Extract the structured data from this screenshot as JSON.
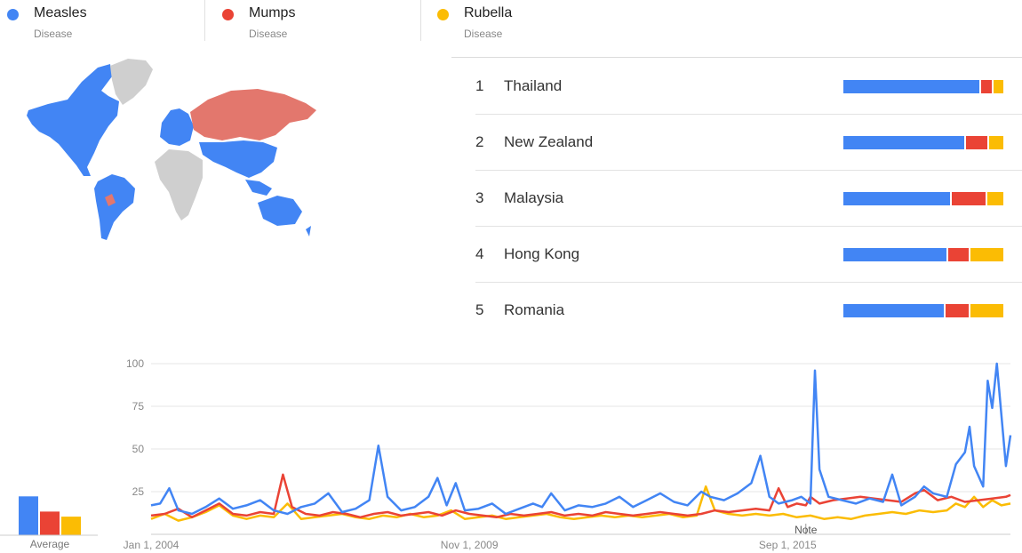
{
  "colors": {
    "measles": "#4285f4",
    "mumps": "#ea4335",
    "rubella": "#fbbc04",
    "grid": "#e6e6e6",
    "axis": "#cccccc",
    "map_none": "#cfcfcf"
  },
  "legend": [
    {
      "name": "Measles",
      "sub": "Disease",
      "color": "#4285f4"
    },
    {
      "name": "Mumps",
      "sub": "Disease",
      "color": "#ea4335"
    },
    {
      "name": "Rubella",
      "sub": "Disease",
      "color": "#fbbc04"
    }
  ],
  "map": {
    "regions": [
      {
        "name": "North America",
        "dominant": "Measles"
      },
      {
        "name": "Greenland",
        "dominant": "none"
      },
      {
        "name": "South America",
        "dominant": "Measles"
      },
      {
        "name": "Europe",
        "dominant": "Measles"
      },
      {
        "name": "Russia",
        "dominant": "Mumps"
      },
      {
        "name": "Africa",
        "dominant": "none"
      },
      {
        "name": "Asia",
        "dominant": "Measles"
      },
      {
        "name": "Australia",
        "dominant": "Measles"
      }
    ]
  },
  "ranking": [
    {
      "rank": "1",
      "region": "Thailand",
      "share": {
        "measles": 0.87,
        "mumps": 0.07,
        "rubella": 0.06
      }
    },
    {
      "rank": "2",
      "region": "New Zealand",
      "share": {
        "measles": 0.77,
        "mumps": 0.14,
        "rubella": 0.09
      }
    },
    {
      "rank": "3",
      "region": "Malaysia",
      "share": {
        "measles": 0.68,
        "mumps": 0.22,
        "rubella": 0.1
      }
    },
    {
      "rank": "4",
      "region": "Hong Kong",
      "share": {
        "measles": 0.66,
        "mumps": 0.13,
        "rubella": 0.21
      }
    },
    {
      "rank": "5",
      "region": "Romania",
      "share": {
        "measles": 0.64,
        "mumps": 0.15,
        "rubella": 0.21
      }
    }
  ],
  "average": {
    "label": "Average",
    "values": {
      "measles": 23,
      "mumps": 14,
      "rubella": 11
    }
  },
  "note_label": "Note",
  "chart_data": {
    "type": "line",
    "x_start": "2004-01",
    "x_end": "2019-10",
    "ylim": [
      0,
      100
    ],
    "y_ticks": [
      "100",
      "75",
      "50",
      "25"
    ],
    "x_ticks": [
      {
        "date": "2004-01",
        "label": "Jan 1, 2004"
      },
      {
        "date": "2009-11",
        "label": "Nov 1, 2009"
      },
      {
        "date": "2015-09",
        "label": "Sep 1, 2015"
      }
    ],
    "note_date": "2016-01",
    "grid": true,
    "series": [
      {
        "name": "Measles",
        "color": "#4285f4",
        "points": [
          [
            "2004-01",
            17
          ],
          [
            "2004-03",
            18
          ],
          [
            "2004-05",
            27
          ],
          [
            "2004-07",
            14
          ],
          [
            "2004-10",
            12
          ],
          [
            "2005-01",
            16
          ],
          [
            "2005-04",
            21
          ],
          [
            "2005-07",
            15
          ],
          [
            "2005-10",
            17
          ],
          [
            "2006-01",
            20
          ],
          [
            "2006-04",
            14
          ],
          [
            "2006-07",
            12
          ],
          [
            "2006-10",
            16
          ],
          [
            "2007-01",
            18
          ],
          [
            "2007-04",
            24
          ],
          [
            "2007-07",
            13
          ],
          [
            "2007-10",
            15
          ],
          [
            "2008-01",
            20
          ],
          [
            "2008-03",
            52
          ],
          [
            "2008-05",
            22
          ],
          [
            "2008-08",
            14
          ],
          [
            "2008-11",
            16
          ],
          [
            "2009-02",
            22
          ],
          [
            "2009-04",
            33
          ],
          [
            "2009-06",
            17
          ],
          [
            "2009-08",
            30
          ],
          [
            "2009-10",
            14
          ],
          [
            "2010-01",
            15
          ],
          [
            "2010-04",
            18
          ],
          [
            "2010-07",
            12
          ],
          [
            "2010-10",
            15
          ],
          [
            "2011-01",
            18
          ],
          [
            "2011-03",
            16
          ],
          [
            "2011-05",
            24
          ],
          [
            "2011-08",
            14
          ],
          [
            "2011-11",
            17
          ],
          [
            "2012-02",
            16
          ],
          [
            "2012-05",
            18
          ],
          [
            "2012-08",
            22
          ],
          [
            "2012-11",
            16
          ],
          [
            "2013-02",
            20
          ],
          [
            "2013-05",
            24
          ],
          [
            "2013-08",
            19
          ],
          [
            "2013-11",
            17
          ],
          [
            "2014-02",
            25
          ],
          [
            "2014-04",
            22
          ],
          [
            "2014-07",
            20
          ],
          [
            "2014-10",
            24
          ],
          [
            "2015-01",
            30
          ],
          [
            "2015-03",
            46
          ],
          [
            "2015-05",
            22
          ],
          [
            "2015-07",
            18
          ],
          [
            "2015-10",
            20
          ],
          [
            "2015-12",
            22
          ],
          [
            "2016-02",
            18
          ],
          [
            "2016-03",
            96
          ],
          [
            "2016-04",
            38
          ],
          [
            "2016-06",
            22
          ],
          [
            "2016-09",
            20
          ],
          [
            "2016-12",
            18
          ],
          [
            "2017-03",
            21
          ],
          [
            "2017-06",
            19
          ],
          [
            "2017-08",
            35
          ],
          [
            "2017-10",
            17
          ],
          [
            "2018-01",
            22
          ],
          [
            "2018-03",
            28
          ],
          [
            "2018-05",
            24
          ],
          [
            "2018-08",
            22
          ],
          [
            "2018-10",
            41
          ],
          [
            "2018-12",
            48
          ],
          [
            "2019-01",
            63
          ],
          [
            "2019-02",
            40
          ],
          [
            "2019-04",
            28
          ],
          [
            "2019-05",
            90
          ],
          [
            "2019-06",
            74
          ],
          [
            "2019-07",
            100
          ],
          [
            "2019-09",
            40
          ],
          [
            "2019-10",
            58
          ]
        ]
      },
      {
        "name": "Mumps",
        "color": "#ea4335",
        "points": [
          [
            "2004-01",
            11
          ],
          [
            "2004-04",
            12
          ],
          [
            "2004-07",
            15
          ],
          [
            "2004-10",
            10
          ],
          [
            "2005-01",
            14
          ],
          [
            "2005-04",
            18
          ],
          [
            "2005-07",
            12
          ],
          [
            "2005-10",
            11
          ],
          [
            "2006-01",
            13
          ],
          [
            "2006-04",
            12
          ],
          [
            "2006-06",
            35
          ],
          [
            "2006-08",
            16
          ],
          [
            "2006-11",
            12
          ],
          [
            "2007-02",
            11
          ],
          [
            "2007-05",
            13
          ],
          [
            "2007-08",
            12
          ],
          [
            "2007-11",
            10
          ],
          [
            "2008-02",
            12
          ],
          [
            "2008-05",
            13
          ],
          [
            "2008-08",
            11
          ],
          [
            "2008-11",
            12
          ],
          [
            "2009-02",
            13
          ],
          [
            "2009-05",
            11
          ],
          [
            "2009-08",
            14
          ],
          [
            "2009-11",
            12
          ],
          [
            "2010-02",
            11
          ],
          [
            "2010-05",
            10
          ],
          [
            "2010-08",
            12
          ],
          [
            "2010-11",
            11
          ],
          [
            "2011-02",
            12
          ],
          [
            "2011-05",
            13
          ],
          [
            "2011-08",
            11
          ],
          [
            "2011-11",
            12
          ],
          [
            "2012-02",
            11
          ],
          [
            "2012-05",
            13
          ],
          [
            "2012-08",
            12
          ],
          [
            "2012-11",
            11
          ],
          [
            "2013-02",
            12
          ],
          [
            "2013-05",
            13
          ],
          [
            "2013-08",
            12
          ],
          [
            "2013-11",
            11
          ],
          [
            "2014-02",
            12
          ],
          [
            "2014-05",
            14
          ],
          [
            "2014-08",
            13
          ],
          [
            "2014-11",
            14
          ],
          [
            "2015-02",
            15
          ],
          [
            "2015-05",
            14
          ],
          [
            "2015-07",
            27
          ],
          [
            "2015-09",
            16
          ],
          [
            "2015-11",
            18
          ],
          [
            "2016-01",
            17
          ],
          [
            "2016-02",
            22
          ],
          [
            "2016-04",
            18
          ],
          [
            "2016-07",
            20
          ],
          [
            "2016-10",
            21
          ],
          [
            "2017-01",
            22
          ],
          [
            "2017-04",
            21
          ],
          [
            "2017-07",
            20
          ],
          [
            "2017-10",
            19
          ],
          [
            "2018-01",
            24
          ],
          [
            "2018-03",
            26
          ],
          [
            "2018-06",
            20
          ],
          [
            "2018-09",
            22
          ],
          [
            "2018-12",
            19
          ],
          [
            "2019-03",
            20
          ],
          [
            "2019-06",
            21
          ],
          [
            "2019-09",
            22
          ],
          [
            "2019-10",
            23
          ]
        ]
      },
      {
        "name": "Rubella",
        "color": "#fbbc04",
        "points": [
          [
            "2004-01",
            9
          ],
          [
            "2004-04",
            12
          ],
          [
            "2004-07",
            8
          ],
          [
            "2004-10",
            10
          ],
          [
            "2005-01",
            13
          ],
          [
            "2005-04",
            17
          ],
          [
            "2005-07",
            11
          ],
          [
            "2005-10",
            9
          ],
          [
            "2006-01",
            11
          ],
          [
            "2006-04",
            10
          ],
          [
            "2006-07",
            18
          ],
          [
            "2006-10",
            9
          ],
          [
            "2007-01",
            10
          ],
          [
            "2007-04",
            11
          ],
          [
            "2007-07",
            12
          ],
          [
            "2007-10",
            10
          ],
          [
            "2008-01",
            9
          ],
          [
            "2008-04",
            11
          ],
          [
            "2008-07",
            10
          ],
          [
            "2008-10",
            12
          ],
          [
            "2009-01",
            10
          ],
          [
            "2009-04",
            11
          ],
          [
            "2009-07",
            14
          ],
          [
            "2009-10",
            9
          ],
          [
            "2010-01",
            10
          ],
          [
            "2010-04",
            11
          ],
          [
            "2010-07",
            9
          ],
          [
            "2010-10",
            10
          ],
          [
            "2011-01",
            11
          ],
          [
            "2011-04",
            12
          ],
          [
            "2011-07",
            10
          ],
          [
            "2011-10",
            9
          ],
          [
            "2012-01",
            10
          ],
          [
            "2012-04",
            11
          ],
          [
            "2012-07",
            10
          ],
          [
            "2012-10",
            11
          ],
          [
            "2013-01",
            10
          ],
          [
            "2013-04",
            11
          ],
          [
            "2013-07",
            12
          ],
          [
            "2013-10",
            10
          ],
          [
            "2014-01",
            11
          ],
          [
            "2014-03",
            28
          ],
          [
            "2014-05",
            14
          ],
          [
            "2014-08",
            12
          ],
          [
            "2014-11",
            11
          ],
          [
            "2015-02",
            12
          ],
          [
            "2015-05",
            11
          ],
          [
            "2015-08",
            12
          ],
          [
            "2015-11",
            10
          ],
          [
            "2016-02",
            11
          ],
          [
            "2016-05",
            9
          ],
          [
            "2016-08",
            10
          ],
          [
            "2016-11",
            9
          ],
          [
            "2017-02",
            11
          ],
          [
            "2017-05",
            12
          ],
          [
            "2017-08",
            13
          ],
          [
            "2017-11",
            12
          ],
          [
            "2018-02",
            14
          ],
          [
            "2018-05",
            13
          ],
          [
            "2018-08",
            14
          ],
          [
            "2018-10",
            18
          ],
          [
            "2018-12",
            16
          ],
          [
            "2019-02",
            22
          ],
          [
            "2019-04",
            16
          ],
          [
            "2019-06",
            20
          ],
          [
            "2019-08",
            17
          ],
          [
            "2019-10",
            18
          ]
        ]
      }
    ]
  }
}
